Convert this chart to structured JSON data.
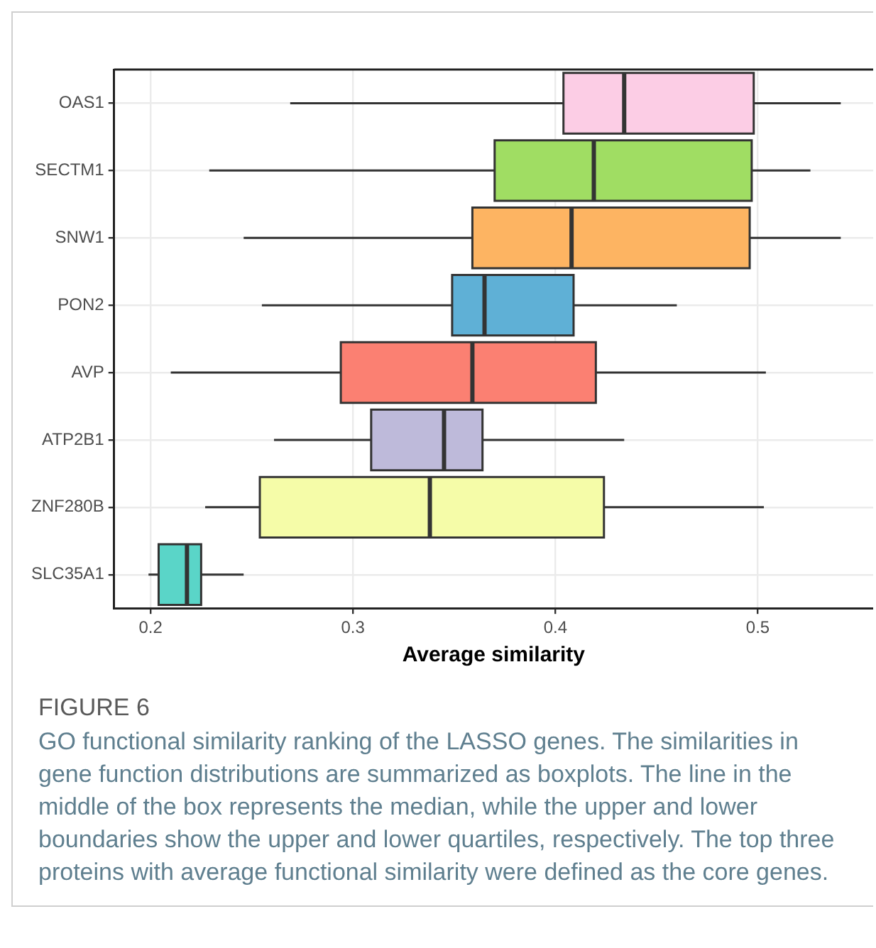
{
  "chart_data": {
    "type": "box",
    "orientation": "horizontal",
    "xlabel": "Average similarity",
    "categories": [
      "OAS1",
      "SECTM1",
      "SNW1",
      "PON2",
      "AVP",
      "ATP2B1",
      "ZNF280B",
      "SLC35A1"
    ],
    "colors": [
      "#fccde5",
      "#a0dd63",
      "#fdb462",
      "#5fb0d6",
      "#fb8072",
      "#bebada",
      "#f5fca8",
      "#5ad5c8"
    ],
    "boxes": [
      {
        "low": 0.269,
        "q1": 0.404,
        "median": 0.434,
        "q3": 0.498,
        "high": 0.541
      },
      {
        "low": 0.229,
        "q1": 0.37,
        "median": 0.419,
        "q3": 0.497,
        "high": 0.526
      },
      {
        "low": 0.246,
        "q1": 0.359,
        "median": 0.408,
        "q3": 0.496,
        "high": 0.541
      },
      {
        "low": 0.255,
        "q1": 0.349,
        "median": 0.365,
        "q3": 0.409,
        "high": 0.46
      },
      {
        "low": 0.21,
        "q1": 0.294,
        "median": 0.359,
        "q3": 0.42,
        "high": 0.504
      },
      {
        "low": 0.261,
        "q1": 0.309,
        "median": 0.345,
        "q3": 0.364,
        "high": 0.434
      },
      {
        "low": 0.227,
        "q1": 0.254,
        "median": 0.338,
        "q3": 0.424,
        "high": 0.503
      },
      {
        "low": 0.199,
        "q1": 0.204,
        "median": 0.218,
        "q3": 0.225,
        "high": 0.246
      }
    ],
    "xlim": [
      0.182,
      0.557
    ],
    "xticks": [
      0.2,
      0.3,
      0.4,
      0.5
    ],
    "grid": true,
    "legend": false,
    "annotations": [
      "FIGURE 6",
      "GO functional similarity ranking of the LASSO genes. The similarities in gene function distributions are summarized as boxplots. The line in the middle of the box represents the median, while the upper and lower boundaries show the upper and lower quartiles, respectively. The top three proteins with average functional similarity were defined as the core genes."
    ]
  }
}
